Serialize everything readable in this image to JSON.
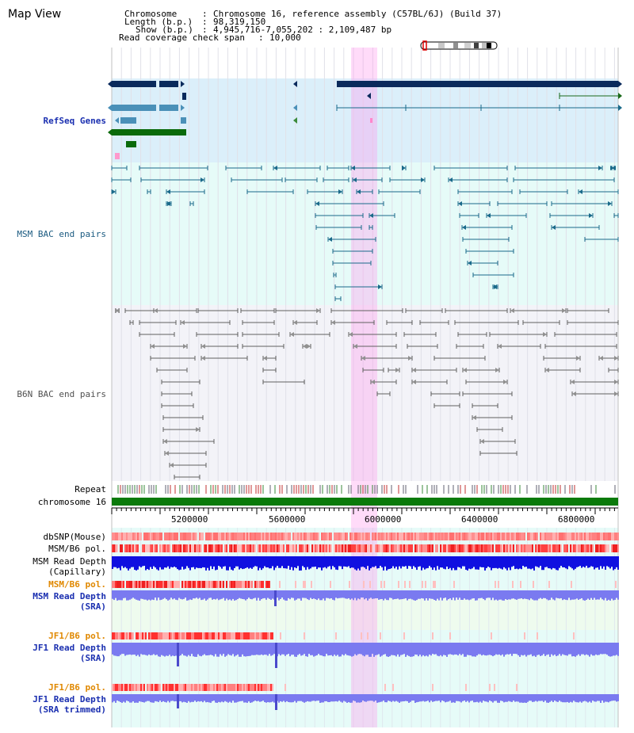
{
  "title": "Map View",
  "info": {
    "chromosome_label": "Chromosome",
    "chromosome_value": "Chromosome 16, reference assembly (C57BL/6J) (Build 37)",
    "length_label": "Length (b.p.)",
    "length_value": "98,319,150",
    "show_label": "Show (b.p.)",
    "show_value": "4,945,716-7,055,202 : 2,109,487 bp",
    "coverage_label": "Read coverage check span",
    "coverage_value": "10,000"
  },
  "tracks": {
    "refseq": "RefSeq Genes",
    "msm_bac": "MSM BAC end pairs",
    "b6n_bac": "B6N BAC end pairs",
    "repeat": "Repeat",
    "chromosome": "chromosome 16",
    "dbsnp": "dbSNP(Mouse)",
    "msm_b6_pol": "MSM/B6 pol.",
    "msm_depth_cap_1": "MSM Read Depth",
    "msm_depth_cap_2": "(Capillary)",
    "msm_b6_pol2": "MSM/B6 pol.",
    "msm_depth_sra_1": "MSM Read Depth",
    "msm_depth_sra_2": "(SRA)",
    "jf1_b6_pol": "JF1/B6 pol.",
    "jf1_depth_sra_1": "JF1 Read Depth",
    "jf1_depth_sra_2": "(SRA)",
    "jf1_b6_pol2": "JF1/B6 pol.",
    "jf1_depth_trim_1": "JF1 Read Depth",
    "jf1_depth_trim_2": "(SRA trimmed)"
  },
  "axis_ticks": [
    "5200000",
    "5600000",
    "6000000",
    "6400000",
    "6800000"
  ],
  "colors": {
    "gene_dark": "#0a2a5c",
    "gene_mid": "#4a90b8",
    "gene_green": "#0a6a0a",
    "msm_bac": "#1a6a8a",
    "b6n_bac": "#606060",
    "highlight": "#ff99ee",
    "chromosome_bar": "#0a7a0a",
    "depth_blue": "#1010e0",
    "depth_violet": "#7a7af0"
  }
}
